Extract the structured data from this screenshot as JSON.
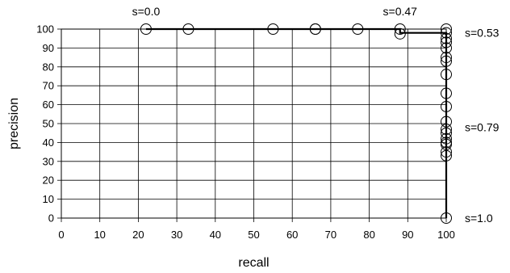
{
  "chart_data": {
    "type": "scatter",
    "title": "",
    "xlabel": "recall",
    "ylabel": "precision",
    "xlim": [
      0,
      100
    ],
    "ylim": [
      0,
      100
    ],
    "xticks": [
      "0",
      "10",
      "20",
      "30",
      "40",
      "50",
      "60",
      "70",
      "80",
      "90",
      "100"
    ],
    "yticks": [
      "0",
      "10",
      "20",
      "30",
      "40",
      "50",
      "60",
      "70",
      "80",
      "90",
      "100"
    ],
    "grid": true,
    "points": {
      "x": [
        22,
        33,
        55,
        66,
        66,
        77,
        88,
        88,
        100,
        100,
        100,
        100,
        100,
        100,
        100,
        100,
        100,
        100,
        100,
        100,
        100,
        100,
        100,
        100,
        100,
        100,
        100
      ],
      "y": [
        100,
        100,
        100,
        100,
        100,
        100,
        100,
        97.5,
        98,
        95,
        93,
        90,
        85,
        83,
        76,
        66,
        59,
        51,
        47,
        45,
        42,
        40,
        39,
        35,
        33,
        0,
        100
      ]
    },
    "curve": {
      "x": [
        22,
        88,
        88,
        100,
        100
      ],
      "y": [
        100,
        100,
        98,
        98,
        0
      ]
    },
    "annotations": [
      {
        "text": "s=0.0",
        "x": 22,
        "y": 100,
        "anchor": "above"
      },
      {
        "text": "s=0.47",
        "x": 88,
        "y": 100,
        "anchor": "above"
      },
      {
        "text": "s=0.53",
        "x": 100,
        "y": 98,
        "anchor": "right"
      },
      {
        "text": "s=0.79",
        "x": 100,
        "y": 48,
        "anchor": "right"
      },
      {
        "text": "s=1.0",
        "x": 100,
        "y": 0,
        "anchor": "right"
      }
    ]
  }
}
